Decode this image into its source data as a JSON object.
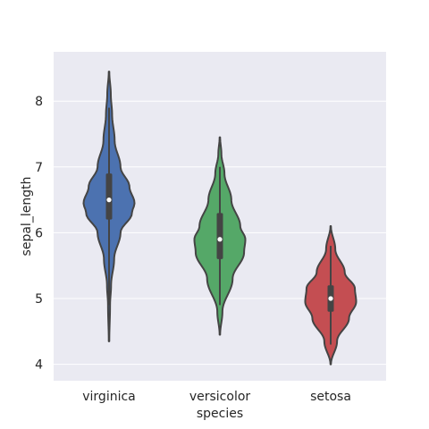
{
  "chart_data": {
    "type": "violin",
    "title": "",
    "xlabel": "species",
    "ylabel": "sepal_length",
    "categories": [
      "virginica",
      "versicolor",
      "setosa"
    ],
    "colors": [
      "#4c72b0",
      "#55a868",
      "#c44e52"
    ],
    "background": "#eaeaf2",
    "grid": true,
    "ylim": [
      3.75,
      8.75
    ],
    "yticks": [
      4,
      5,
      6,
      7,
      8
    ],
    "series": [
      {
        "category": "virginica",
        "min": 4.9,
        "q1": 6.2,
        "median": 6.5,
        "q3": 6.9,
        "max": 7.9,
        "kde_low": 4.35,
        "kde_high": 8.45,
        "density": [
          [
            4.35,
            0.01
          ],
          [
            4.9,
            0.04
          ],
          [
            5.2,
            0.08
          ],
          [
            5.6,
            0.2
          ],
          [
            6.0,
            0.45
          ],
          [
            6.3,
            0.9
          ],
          [
            6.45,
            1.0
          ],
          [
            6.7,
            0.8
          ],
          [
            7.0,
            0.45
          ],
          [
            7.4,
            0.22
          ],
          [
            7.8,
            0.12
          ],
          [
            8.1,
            0.07
          ],
          [
            8.45,
            0.01
          ]
        ]
      },
      {
        "category": "versicolor",
        "min": 4.9,
        "q1": 5.6,
        "median": 5.9,
        "q3": 6.3,
        "max": 7.0,
        "kde_low": 4.45,
        "kde_high": 7.45,
        "density": [
          [
            4.45,
            0.01
          ],
          [
            4.8,
            0.1
          ],
          [
            5.3,
            0.5
          ],
          [
            5.7,
            0.95
          ],
          [
            5.9,
            1.0
          ],
          [
            6.1,
            0.8
          ],
          [
            6.5,
            0.45
          ],
          [
            6.9,
            0.18
          ],
          [
            7.2,
            0.06
          ],
          [
            7.45,
            0.01
          ]
        ]
      },
      {
        "category": "setosa",
        "min": 4.3,
        "q1": 4.8,
        "median": 5.0,
        "q3": 5.2,
        "max": 5.8,
        "kde_low": 4.0,
        "kde_high": 6.1,
        "density": [
          [
            4.0,
            0.01
          ],
          [
            4.35,
            0.25
          ],
          [
            4.7,
            0.72
          ],
          [
            4.95,
            1.0
          ],
          [
            5.15,
            0.95
          ],
          [
            5.4,
            0.55
          ],
          [
            5.75,
            0.18
          ],
          [
            6.1,
            0.01
          ]
        ]
      }
    ]
  }
}
